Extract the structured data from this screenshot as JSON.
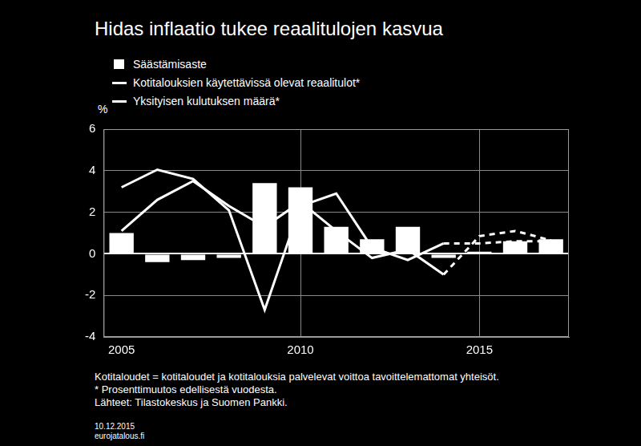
{
  "chart_data": {
    "type": "bar",
    "title": "Hidas inflaatio tukee reaalitulojen kasvua",
    "y_unit": "%",
    "categories": [
      "2005",
      null,
      null,
      null,
      null,
      "2010",
      null,
      null,
      null,
      null,
      "2015",
      null,
      null
    ],
    "series": [
      {
        "name": "Säästämisaste",
        "type": "bar",
        "color": "#ffffff",
        "values": [
          1.0,
          -0.4,
          -0.3,
          -0.2,
          3.4,
          3.2,
          1.3,
          0.7,
          1.3,
          -0.2,
          0.1,
          0.6,
          0.7
        ]
      },
      {
        "name": "Kotitalouksien käytettävissä olevat reaalitulot*",
        "type": "line",
        "line_style": "solid",
        "color": "#ffffff",
        "values": [
          1.1,
          2.6,
          3.5,
          2.3,
          1.3,
          2.5,
          1.1,
          -0.2,
          0.2,
          -1.0,
          null,
          null,
          null
        ]
      },
      {
        "name": "Kotitalouksien käytettävissä olevat reaalitulot*",
        "type": "line",
        "line_style": "dashed",
        "color": "#ffffff",
        "values": [
          null,
          null,
          null,
          null,
          null,
          null,
          null,
          null,
          null,
          -1.0,
          0.85,
          1.1,
          0.65
        ]
      },
      {
        "name": "Yksityisen kulutuksen määrä*",
        "type": "line",
        "line_style": "solid",
        "color": "#ffffff",
        "values": [
          3.2,
          4.05,
          3.6,
          2.1,
          -2.7,
          2.3,
          2.9,
          0.3,
          -0.3,
          0.5,
          null,
          null,
          null
        ]
      },
      {
        "name": "Yksityisen kulutuksen määrä*",
        "type": "line",
        "line_style": "dashed",
        "color": "#ffffff",
        "values": [
          null,
          null,
          null,
          null,
          null,
          null,
          null,
          null,
          null,
          0.5,
          0.5,
          0.6,
          0.6
        ]
      }
    ],
    "ylim": [
      -4,
      6
    ],
    "yticks": [
      -4,
      -2,
      0,
      2,
      4,
      6
    ],
    "grid": true,
    "legend": "top-left",
    "notes": [
      "Kotitaloudet = kotitaloudet ja kotitalouksia palvelevat voittoa tavoittelemattomat yhteisöt.",
      "* Prosenttimuutos edellisestä vuodesta.",
      "Lähteet: Tilastokeskus ja Suomen Pankki."
    ],
    "date": "10.12.2015",
    "source_url": "eurojatalous.fi"
  }
}
